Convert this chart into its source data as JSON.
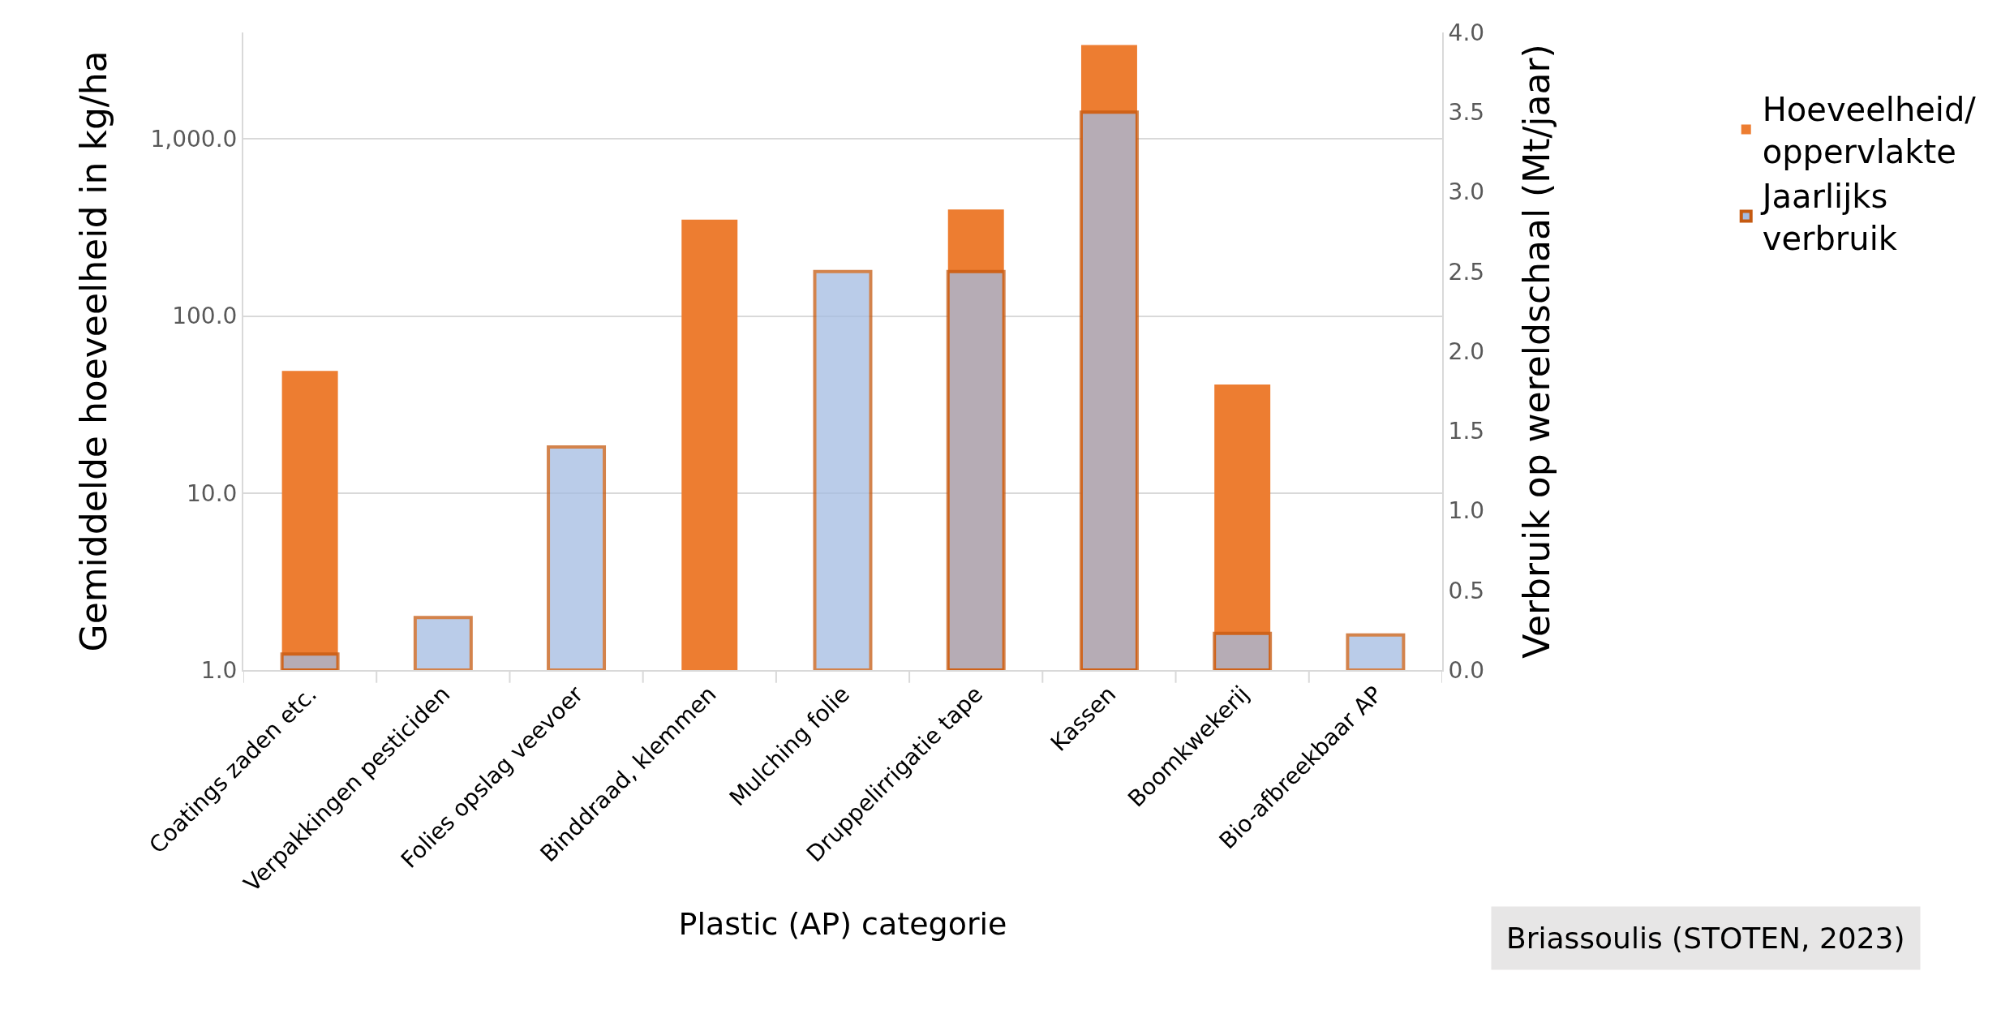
{
  "chart_data": {
    "type": "bar",
    "categories": [
      "Coatings zaden etc.",
      "Verpakkingen pesticiden",
      "Folies opslag veevoer",
      "Binddraad, klemmen",
      "Mulching folie",
      "Druppelirrigatie tape",
      "Kassen",
      "Boomkwekerij",
      "Bio-afbreekbaar AP"
    ],
    "series": [
      {
        "name": "Hoeveelheid/\noppervlakte",
        "color": "#ed7d31",
        "values": [
          49,
          null,
          null,
          350,
          null,
          400,
          3400,
          41,
          null
        ]
      },
      {
        "name": "Jaarlijks\nverbruik",
        "color": "#a4bce2",
        "axis": "y2",
        "values": [
          0.1,
          0.33,
          1.4,
          null,
          2.5,
          2.5,
          3.5,
          0.23,
          0.22
        ]
      }
    ],
    "xlabel": "Plastic (AP) categorie",
    "ylabel": "Gemiddelde hoeveelheid in kg/ha",
    "y2label": "Verbruik op wereldschaal (Mt/jaar)",
    "log": "y",
    "ylim": [
      1,
      4000
    ],
    "yticks": [
      {
        "value": 1,
        "label": "1.0"
      },
      {
        "value": 10,
        "label": "10.0"
      },
      {
        "value": 100,
        "label": "100.0"
      },
      {
        "value": 1000,
        "label": "1,000.0"
      }
    ],
    "y2lim": [
      0,
      4
    ],
    "y2ticks": [
      {
        "value": 0,
        "label": "0.0"
      },
      {
        "value": 0.5,
        "label": "0.5"
      },
      {
        "value": 1,
        "label": "1.0"
      },
      {
        "value": 1.5,
        "label": "1.5"
      },
      {
        "value": 2,
        "label": "2.0"
      },
      {
        "value": 2.5,
        "label": "2.5"
      },
      {
        "value": 3,
        "label": "3.0"
      },
      {
        "value": 3.5,
        "label": "3.5"
      },
      {
        "value": 4,
        "label": "4.0"
      }
    ],
    "grid": "y",
    "legend": "right",
    "annotations": [
      "Briassoulis (STOTEN, 2023)"
    ]
  }
}
